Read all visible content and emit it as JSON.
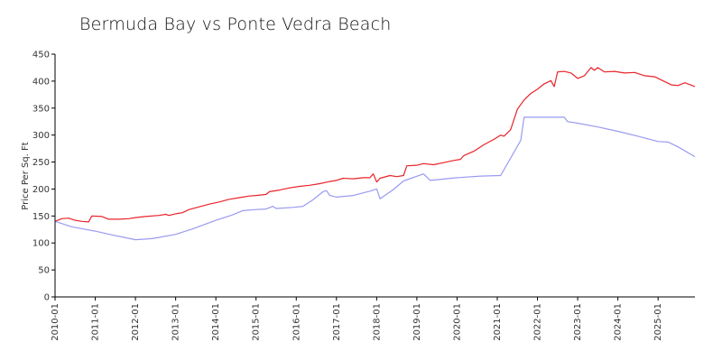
{
  "chart_data": {
    "type": "line",
    "title": "Bermuda Bay vs Ponte Vedra Beach",
    "xlabel": "",
    "ylabel": "Price Per Sq. Ft",
    "ylim": [
      0,
      450
    ],
    "yticks": [
      0,
      50,
      100,
      150,
      200,
      250,
      300,
      350,
      400,
      450
    ],
    "xlim": [
      "2010-01",
      "2025-12"
    ],
    "xticks": [
      "2010-01",
      "2011-01",
      "2012-01",
      "2013-01",
      "2014-01",
      "2015-01",
      "2016-01",
      "2017-01",
      "2018-01",
      "2019-01",
      "2020-01",
      "2021-01",
      "2022-01",
      "2023-01",
      "2024-01",
      "2025-01"
    ],
    "grid": false,
    "series": [
      {
        "color": "#e8232a",
        "points": [
          [
            "2010-01",
            140
          ],
          [
            "2010-03",
            145
          ],
          [
            "2010-05",
            146
          ],
          [
            "2010-07",
            142
          ],
          [
            "2010-09",
            140
          ],
          [
            "2010-11",
            139
          ],
          [
            "2010-12",
            150
          ],
          [
            "2011-03",
            149
          ],
          [
            "2011-05",
            144
          ],
          [
            "2011-08",
            144
          ],
          [
            "2011-11",
            145
          ],
          [
            "2012-01",
            147
          ],
          [
            "2012-04",
            149
          ],
          [
            "2012-08",
            151
          ],
          [
            "2012-10",
            153
          ],
          [
            "2012-11",
            151
          ],
          [
            "2013-01",
            154
          ],
          [
            "2013-03",
            156
          ],
          [
            "2013-05",
            162
          ],
          [
            "2013-08",
            167
          ],
          [
            "2013-11",
            172
          ],
          [
            "2014-02",
            176
          ],
          [
            "2014-05",
            181
          ],
          [
            "2014-08",
            184
          ],
          [
            "2014-11",
            187
          ],
          [
            "2015-01",
            188
          ],
          [
            "2015-04",
            190
          ],
          [
            "2015-05",
            195
          ],
          [
            "2015-08",
            198
          ],
          [
            "2015-11",
            202
          ],
          [
            "2016-02",
            205
          ],
          [
            "2016-05",
            207
          ],
          [
            "2016-08",
            210
          ],
          [
            "2016-11",
            214
          ],
          [
            "2017-01",
            216
          ],
          [
            "2017-03",
            220
          ],
          [
            "2017-06",
            219
          ],
          [
            "2017-09",
            221
          ],
          [
            "2017-11",
            221
          ],
          [
            "2017-12",
            228
          ],
          [
            "2018-01",
            213
          ],
          [
            "2018-02",
            220
          ],
          [
            "2018-05",
            225
          ],
          [
            "2018-07",
            223
          ],
          [
            "2018-09",
            225
          ],
          [
            "2018-10",
            243
          ],
          [
            "2019-01",
            244
          ],
          [
            "2019-03",
            247
          ],
          [
            "2019-06",
            245
          ],
          [
            "2019-09",
            249
          ],
          [
            "2019-12",
            253
          ],
          [
            "2020-02",
            255
          ],
          [
            "2020-03",
            262
          ],
          [
            "2020-06",
            270
          ],
          [
            "2020-09",
            282
          ],
          [
            "2020-12",
            292
          ],
          [
            "2021-02",
            300
          ],
          [
            "2021-03",
            298
          ],
          [
            "2021-05",
            310
          ],
          [
            "2021-07",
            348
          ],
          [
            "2021-09",
            365
          ],
          [
            "2021-11",
            377
          ],
          [
            "2022-01",
            385
          ],
          [
            "2022-03",
            395
          ],
          [
            "2022-05",
            401
          ],
          [
            "2022-06",
            390
          ],
          [
            "2022-07",
            417
          ],
          [
            "2022-09",
            418
          ],
          [
            "2022-11",
            415
          ],
          [
            "2023-01",
            405
          ],
          [
            "2023-03",
            410
          ],
          [
            "2023-05",
            425
          ],
          [
            "2023-06",
            420
          ],
          [
            "2023-07",
            425
          ],
          [
            "2023-09",
            417
          ],
          [
            "2023-12",
            418
          ],
          [
            "2024-03",
            415
          ],
          [
            "2024-06",
            416
          ],
          [
            "2024-09",
            410
          ],
          [
            "2024-12",
            408
          ],
          [
            "2025-02",
            402
          ],
          [
            "2025-05",
            393
          ],
          [
            "2025-07",
            392
          ],
          [
            "2025-09",
            397
          ],
          [
            "2025-12",
            390
          ]
        ]
      },
      {
        "color": "#9a9af0",
        "points": [
          [
            "2010-01",
            140
          ],
          [
            "2010-06",
            130
          ],
          [
            "2011-01",
            122
          ],
          [
            "2011-06",
            115
          ],
          [
            "2012-01",
            106
          ],
          [
            "2012-06",
            108
          ],
          [
            "2013-01",
            116
          ],
          [
            "2013-06",
            126
          ],
          [
            "2014-01",
            142
          ],
          [
            "2014-06",
            152
          ],
          [
            "2014-09",
            160
          ],
          [
            "2015-01",
            162
          ],
          [
            "2015-04",
            163
          ],
          [
            "2015-06",
            168
          ],
          [
            "2015-07",
            164
          ],
          [
            "2015-12",
            166
          ],
          [
            "2016-03",
            168
          ],
          [
            "2016-06",
            180
          ],
          [
            "2016-09",
            195
          ],
          [
            "2016-10",
            197
          ],
          [
            "2016-11",
            188
          ],
          [
            "2017-01",
            185
          ],
          [
            "2017-06",
            188
          ],
          [
            "2017-11",
            196
          ],
          [
            "2018-01",
            200
          ],
          [
            "2018-02",
            182
          ],
          [
            "2018-06",
            199
          ],
          [
            "2018-09",
            215
          ],
          [
            "2019-03",
            228
          ],
          [
            "2019-05",
            216
          ],
          [
            "2020-01",
            221
          ],
          [
            "2020-08",
            224
          ],
          [
            "2021-02",
            225
          ],
          [
            "2021-08",
            290
          ],
          [
            "2021-09",
            333
          ],
          [
            "2022-03",
            333
          ],
          [
            "2022-09",
            333
          ],
          [
            "2022-10",
            325
          ],
          [
            "2023-01",
            322
          ],
          [
            "2023-07",
            315
          ],
          [
            "2024-01",
            307
          ],
          [
            "2024-07",
            298
          ],
          [
            "2025-01",
            288
          ],
          [
            "2025-04",
            287
          ],
          [
            "2025-07",
            278
          ],
          [
            "2025-12",
            260
          ]
        ]
      }
    ]
  }
}
